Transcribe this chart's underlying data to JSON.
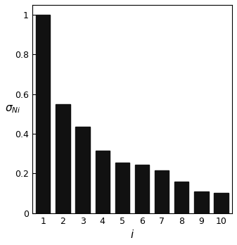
{
  "categories": [
    1,
    2,
    3,
    4,
    5,
    6,
    7,
    8,
    9,
    10
  ],
  "values": [
    1.0,
    0.55,
    0.435,
    0.315,
    0.255,
    0.245,
    0.215,
    0.16,
    0.11,
    0.1
  ],
  "bar_color": "#111111",
  "xlabel": "i",
  "ylim": [
    0,
    1.05
  ],
  "yticks": [
    0,
    0.2,
    0.4,
    0.6,
    0.8,
    1.0
  ],
  "xticks": [
    1,
    2,
    3,
    4,
    5,
    6,
    7,
    8,
    9,
    10
  ],
  "bar_width": 0.72,
  "xlabel_fontsize": 11,
  "ylabel_fontsize": 11,
  "tick_fontsize": 9,
  "xlim": [
    0.45,
    10.55
  ]
}
